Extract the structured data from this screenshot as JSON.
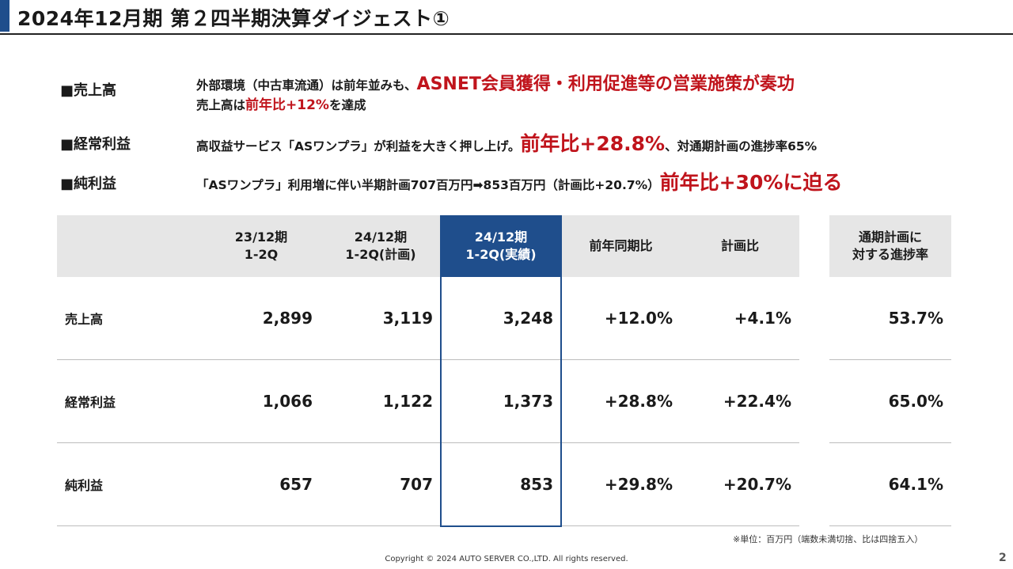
{
  "title": "2024年12月期 第２四半期決算ダイジェスト①",
  "accent_color": "#1f4e8c",
  "highlight_color": "#c0141c",
  "bullets": [
    {
      "heading": "■売上高",
      "line1_plain": "外部環境（中古車流通）は前年並みも、",
      "line1_red": "ASNET会員獲得・利用促進等の営業施策が奏功",
      "line2_plain": "売上高は",
      "line2_red": "前年比+12%",
      "line2_tail": "を達成"
    },
    {
      "heading": "■経常利益",
      "plain": "高収益サービス「ASワンプラ」が利益を大きく押し上げ。",
      "red": "前年比+28.8%",
      "tail": "、対通期計画の進捗率65%"
    },
    {
      "heading": "■純利益",
      "plain": "「ASワンプラ」利用増に伴い半期計画707百万円➡853百万円（計画比+20.7%）",
      "red": "前年比+30%に迫る"
    }
  ],
  "table": {
    "headers": [
      "23/12期\n1-2Q",
      "24/12期\n1-2Q(計画)",
      "24/12期\n1-2Q(実績)",
      "前年同期比",
      "計画比"
    ],
    "progress_header": "通期計画に\n対する進捗率",
    "rows": [
      {
        "label": "売上高",
        "values": [
          "2,899",
          "3,119",
          "3,248",
          "+12.0%",
          "+4.1%"
        ],
        "progress": "53.7%"
      },
      {
        "label": "経常利益",
        "values": [
          "1,066",
          "1,122",
          "1,373",
          "+28.8%",
          "+22.4%"
        ],
        "progress": "65.0%"
      },
      {
        "label": "純利益",
        "values": [
          "657",
          "707",
          "853",
          "+29.8%",
          "+20.7%"
        ],
        "progress": "64.1%"
      }
    ]
  },
  "note": "※単位：百万円（端数未満切捨、比は四捨五入）",
  "copyright": "Copyright © 2024 AUTO SERVER CO.,LTD.  All rights reserved.",
  "page_number": "2"
}
